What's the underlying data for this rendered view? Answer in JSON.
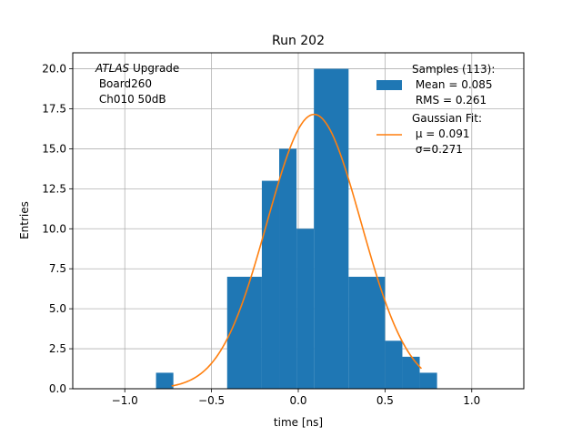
{
  "chart_data": {
    "type": "bar",
    "title": "Run 202",
    "xlabel": "time [ns]",
    "ylabel": "Entries",
    "xlim": [
      -1.3,
      1.3
    ],
    "ylim": [
      0,
      21
    ],
    "grid": true,
    "x_ticks": [
      -1.0,
      -0.5,
      0.0,
      0.5,
      1.0
    ],
    "x_tick_labels": [
      "−1.0",
      "−0.5",
      "0.0",
      "0.5",
      "1.0"
    ],
    "y_ticks": [
      0,
      2.5,
      5,
      7.5,
      10,
      12.5,
      15,
      17.5,
      20
    ],
    "y_tick_labels": [
      "0.0",
      "2.5",
      "5.0",
      "7.5",
      "10.0",
      "12.5",
      "15.0",
      "17.5",
      "20.0"
    ],
    "histogram": {
      "color": "#1f77b4",
      "bins": [
        {
          "x0": -0.82,
          "x1": -0.72,
          "count": 1
        },
        {
          "x0": -0.41,
          "x1": -0.21,
          "count": 7
        },
        {
          "x0": -0.21,
          "x1": -0.11,
          "count": 13
        },
        {
          "x0": -0.11,
          "x1": -0.01,
          "count": 15
        },
        {
          "x0": -0.01,
          "x1": 0.09,
          "count": 10
        },
        {
          "x0": 0.09,
          "x1": 0.29,
          "count": 20
        },
        {
          "x0": 0.29,
          "x1": 0.5,
          "count": 7
        },
        {
          "x0": 0.5,
          "x1": 0.6,
          "count": 3
        },
        {
          "x0": 0.6,
          "x1": 0.7,
          "count": 2
        },
        {
          "x0": 0.7,
          "x1": 0.8,
          "count": 1
        }
      ]
    },
    "fit": {
      "type": "gaussian",
      "color": "#ff7f0e",
      "amplitude": 17.15,
      "mu": 0.091,
      "sigma": 0.271,
      "x_range": [
        -0.73,
        0.71
      ]
    },
    "annotation_lines": [
      "ATLAS Upgrade",
      "Board260",
      "Ch010 50dB"
    ],
    "legend": {
      "placement": "top-right",
      "entries": [
        {
          "kind": "patch",
          "lines": [
            "Samples (113):",
            "Mean = 0.085",
            "RMS = 0.261"
          ]
        },
        {
          "kind": "line",
          "lines": [
            "Gaussian Fit:",
            "μ = 0.091",
            "σ=0.271"
          ]
        }
      ]
    }
  }
}
